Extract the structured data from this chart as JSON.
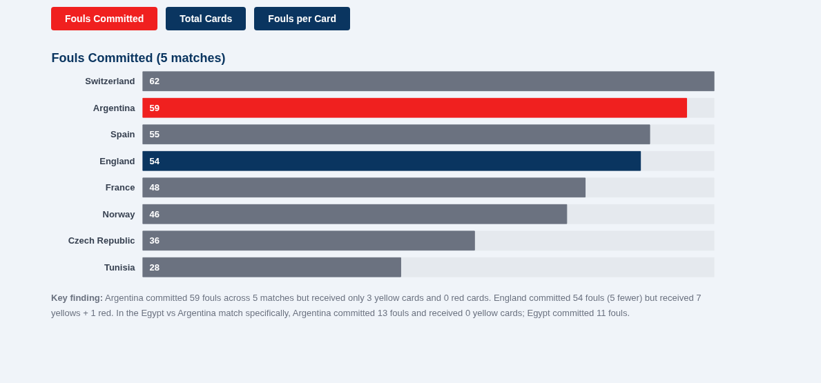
{
  "chart_data": {
    "type": "bar",
    "orientation": "horizontal",
    "title": "Fouls Committed (5 matches)",
    "categories": [
      "Switzerland",
      "Argentina",
      "Spain",
      "England",
      "France",
      "Norway",
      "Czech Republic",
      "Tunisia"
    ],
    "values": [
      62,
      59,
      55,
      54,
      48,
      46,
      36,
      28
    ],
    "colors": [
      "#6b7280",
      "#f0201f",
      "#6b7280",
      "#0a3560",
      "#6b7280",
      "#6b7280",
      "#6b7280",
      "#6b7280"
    ],
    "data_labels": true,
    "grid": false,
    "annotations": [
      "Fouls Committed",
      "Total Cards",
      "Fouls per Card",
      "Key finding: Argentina committed 59 fouls across 5 matches but received only 3 yellow cards and 0 red cards. England committed 54 fouls (5 fewer) but received 7 yellows + 1 red. In the Egypt vs Argentina match specifically, Argentina committed 13 fouls and received 0 yellow cards; Egypt committed 11 fouls."
    ]
  }
}
